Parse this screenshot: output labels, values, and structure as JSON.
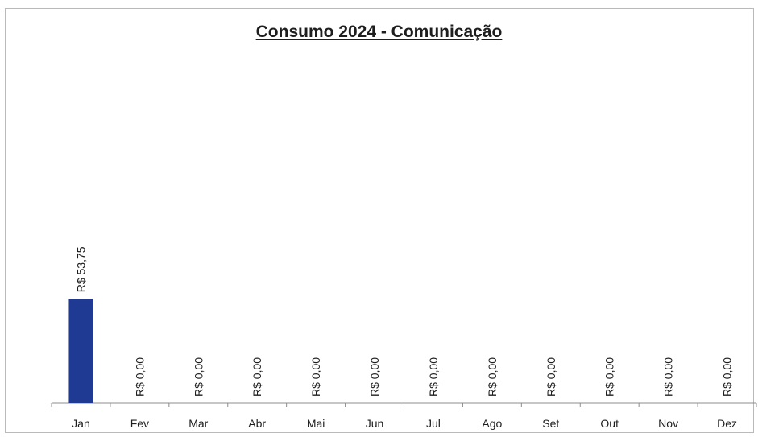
{
  "chart_data": {
    "type": "bar",
    "title": "Consumo 2024 - Comunicação",
    "categories": [
      "Jan",
      "Fev",
      "Mar",
      "Abr",
      "Mai",
      "Jun",
      "Jul",
      "Ago",
      "Set",
      "Out",
      "Nov",
      "Dez"
    ],
    "values": [
      53.75,
      0,
      0,
      0,
      0,
      0,
      0,
      0,
      0,
      0,
      0,
      0
    ],
    "data_labels": [
      "R$ 53,75",
      "R$ 0,00",
      "R$ 0,00",
      "R$ 0,00",
      "R$ 0,00",
      "R$ 0,00",
      "R$ 0,00",
      "R$ 0,00",
      "R$ 0,00",
      "R$ 0,00",
      "R$ 0,00",
      "R$ 0,00"
    ],
    "xlabel": "",
    "ylabel": "",
    "ylim": [
      0,
      133
    ],
    "grid": false,
    "legend": "none",
    "bar_color": "#1f3a93"
  }
}
